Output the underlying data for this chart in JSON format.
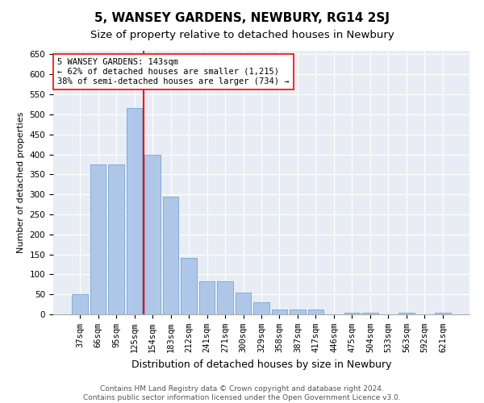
{
  "title": "5, WANSEY GARDENS, NEWBURY, RG14 2SJ",
  "subtitle": "Size of property relative to detached houses in Newbury",
  "xlabel": "Distribution of detached houses by size in Newbury",
  "ylabel": "Number of detached properties",
  "categories": [
    "37sqm",
    "66sqm",
    "95sqm",
    "125sqm",
    "154sqm",
    "183sqm",
    "212sqm",
    "241sqm",
    "271sqm",
    "300sqm",
    "329sqm",
    "358sqm",
    "387sqm",
    "417sqm",
    "446sqm",
    "475sqm",
    "504sqm",
    "533sqm",
    "563sqm",
    "592sqm",
    "621sqm"
  ],
  "values": [
    50,
    375,
    375,
    515,
    400,
    295,
    142,
    82,
    82,
    55,
    30,
    12,
    12,
    12,
    0,
    5,
    5,
    0,
    5,
    0,
    5
  ],
  "bar_color": "#aec7e8",
  "bar_edge_color": "#6699cc",
  "vline_x_index": 4,
  "vline_color": "red",
  "annotation_text": "5 WANSEY GARDENS: 143sqm\n← 62% of detached houses are smaller (1,215)\n38% of semi-detached houses are larger (734) →",
  "annotation_box_color": "white",
  "annotation_box_edge_color": "red",
  "ylim": [
    0,
    660
  ],
  "yticks": [
    0,
    50,
    100,
    150,
    200,
    250,
    300,
    350,
    400,
    450,
    500,
    550,
    600,
    650
  ],
  "background_color": "#e8edf5",
  "footer_line1": "Contains HM Land Registry data © Crown copyright and database right 2024.",
  "footer_line2": "Contains public sector information licensed under the Open Government Licence v3.0.",
  "title_fontsize": 11,
  "subtitle_fontsize": 9.5,
  "xlabel_fontsize": 9,
  "ylabel_fontsize": 8,
  "tick_fontsize": 7.5,
  "annotation_fontsize": 7.5,
  "footer_fontsize": 6.5
}
